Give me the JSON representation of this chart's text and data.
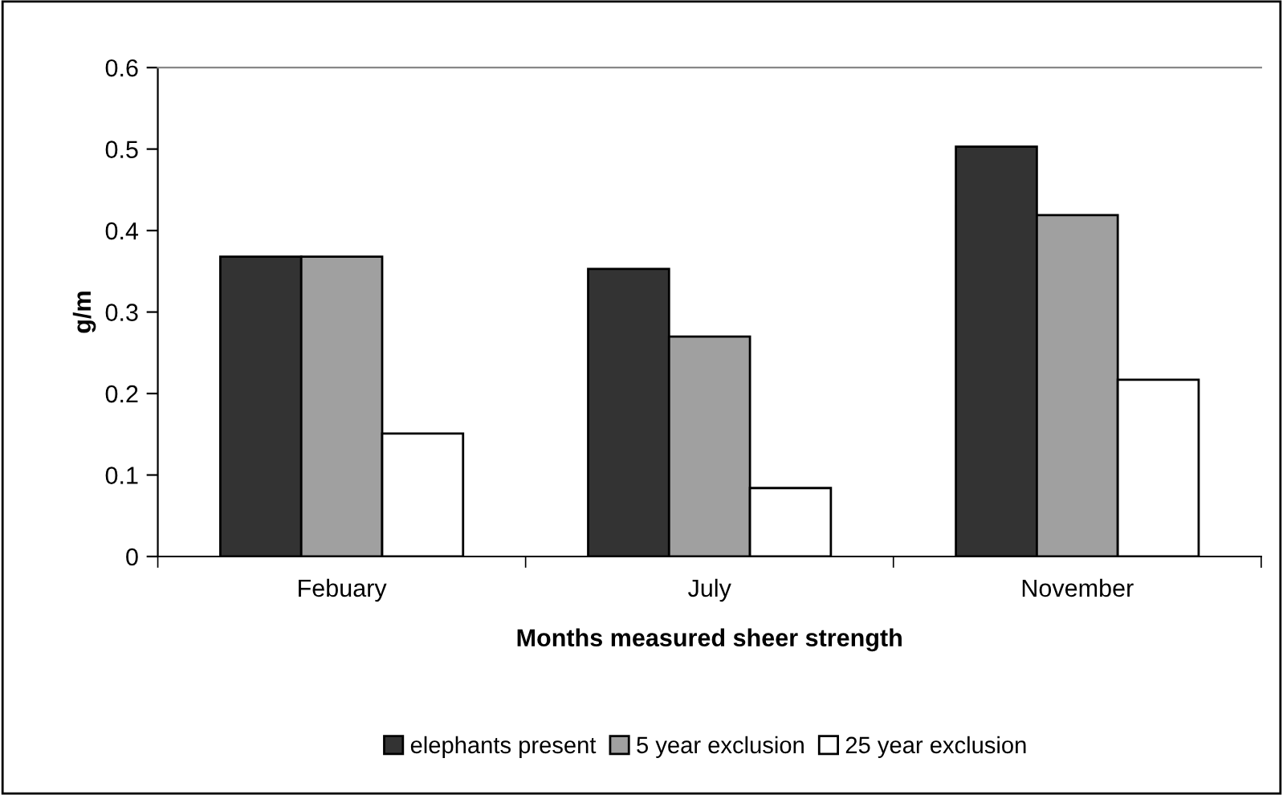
{
  "chart_data": {
    "type": "bar",
    "xlabel": "Months measured sheer strength",
    "ylabel": "g/m",
    "categories": [
      "Febuary",
      "July",
      "November"
    ],
    "series": [
      {
        "name": "elephants present",
        "color": "#333333",
        "values": [
          0.368,
          0.353,
          0.503
        ]
      },
      {
        "name": "5 year exclusion",
        "color": "#a0a0a0",
        "values": [
          0.368,
          0.27,
          0.419
        ]
      },
      {
        "name": "25 year exclusion",
        "color": "#ffffff",
        "values": [
          0.151,
          0.084,
          0.217
        ]
      }
    ],
    "ylim": [
      0,
      0.6
    ],
    "yticks": [
      0,
      0.1,
      0.2,
      0.3,
      0.4,
      0.5,
      0.6
    ],
    "grid": false,
    "legend": "bottom"
  }
}
